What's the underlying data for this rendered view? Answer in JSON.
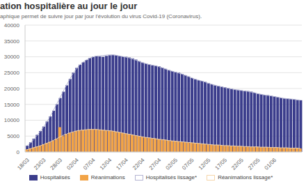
{
  "chart_data": {
    "type": "bar",
    "title": "ation hospitalière au jour le jour",
    "subtitle": "aphique permet de suivre jour par jour l'évolution du virus Covid-19 (Coronavirus).",
    "categories": [
      "18/03",
      null,
      null,
      null,
      null,
      "23/03",
      null,
      null,
      null,
      null,
      "28/03",
      null,
      null,
      null,
      null,
      "02/04",
      null,
      null,
      null,
      null,
      "07/04",
      null,
      null,
      null,
      null,
      "12/04",
      null,
      null,
      null,
      null,
      "17/04",
      null,
      null,
      null,
      null,
      "22/04",
      null,
      null,
      null,
      null,
      "27/04",
      null,
      null,
      null,
      null,
      "02/05",
      null,
      null,
      null,
      null,
      "07/05",
      null,
      null,
      null,
      null,
      "12/05",
      null,
      null,
      null,
      null,
      "17/05",
      null,
      null,
      null,
      null,
      "22/05",
      null,
      null,
      null,
      null,
      "27/05",
      null,
      null,
      null,
      null,
      "01/06",
      null,
      null,
      null,
      null,
      null,
      null,
      null,
      null
    ],
    "series": [
      {
        "name": "Hospitalisés",
        "type": "bar",
        "color": "#3b3d8c",
        "values": [
          2000,
          3000,
          4200,
          5400,
          6600,
          8000,
          9600,
          11200,
          13000,
          15000,
          17000,
          19000,
          21000,
          23000,
          25000,
          26500,
          27500,
          28300,
          29000,
          29600,
          30000,
          30200,
          30100,
          30000,
          30300,
          30500,
          30600,
          30500,
          30300,
          30100,
          30000,
          29800,
          29500,
          29100,
          28600,
          28200,
          27900,
          27600,
          27300,
          27200,
          27000,
          26600,
          26200,
          25800,
          25500,
          25200,
          25000,
          24600,
          24200,
          23800,
          23300,
          22900,
          22600,
          22400,
          22100,
          21700,
          21300,
          21000,
          20800,
          20600,
          20400,
          20100,
          19900,
          19700,
          19600,
          19400,
          19300,
          19200,
          19000,
          18700,
          18400,
          18200,
          18000,
          17900,
          17700,
          17500,
          17300,
          17100,
          16900,
          16800,
          16700,
          16600,
          16500,
          16300
        ]
      },
      {
        "name": "Réanimations",
        "type": "bar",
        "color": "#f2a447",
        "values": [
          800,
          1100,
          1400,
          1700,
          2000,
          2400,
          2800,
          3200,
          3600,
          4100,
          7800,
          5000,
          5600,
          6000,
          6300,
          6600,
          6800,
          6900,
          7000,
          7100,
          7100,
          7100,
          7000,
          6900,
          6800,
          6700,
          6600,
          6400,
          6200,
          6000,
          5800,
          5600,
          5400,
          5200,
          5000,
          4800,
          4600,
          4500,
          4300,
          4200,
          4000,
          3900,
          3800,
          3600,
          3500,
          3400,
          3300,
          3200,
          3100,
          3000,
          2900,
          2800,
          2700,
          2600,
          2500,
          2400,
          2300,
          2200,
          2200,
          2100,
          2000,
          2000,
          1900,
          1900,
          1800,
          1800,
          1700,
          1700,
          1600,
          1600,
          1600,
          1500,
          1500,
          1500,
          1400,
          1400,
          1400,
          1300,
          1300,
          1300,
          1200,
          1200,
          1200,
          1100
        ]
      },
      {
        "name": "Hospitalisés lissage*",
        "type": "line",
        "color": "#b4b5d3",
        "values": [
          1800,
          2700,
          3800,
          5000,
          6300,
          7700,
          9300,
          11000,
          12900,
          14900,
          16900,
          18900,
          20900,
          22800,
          24600,
          26100,
          27300,
          28200,
          28900,
          29500,
          29900,
          30200,
          30300,
          30400,
          30500,
          30600,
          30600,
          30500,
          30300,
          30100,
          29900,
          29700,
          29400,
          29000,
          28600,
          28200,
          27900,
          27600,
          27400,
          27200,
          26900,
          26600,
          26200,
          25800,
          25500,
          25200,
          24900,
          24600,
          24200,
          23800,
          23400,
          23000,
          22700,
          22400,
          22100,
          21700,
          21400,
          21100,
          20800,
          20600,
          20300,
          20100,
          19900,
          19700,
          19500,
          19400,
          19200,
          19100,
          18900,
          18700,
          18400,
          18200,
          18000,
          17800,
          17700,
          17500,
          17300,
          17100,
          16900,
          16800,
          16700,
          16600,
          16400,
          16300
        ]
      },
      {
        "name": "Réanimations lissage*",
        "type": "line",
        "color": "#f6d6aa",
        "values": [
          700,
          1000,
          1300,
          1600,
          1900,
          2300,
          2700,
          3100,
          3600,
          4100,
          4700,
          5200,
          5600,
          6000,
          6300,
          6600,
          6800,
          6900,
          7000,
          7100,
          7100,
          7100,
          7000,
          6900,
          6800,
          6700,
          6600,
          6400,
          6200,
          6000,
          5800,
          5600,
          5400,
          5200,
          5000,
          4800,
          4600,
          4500,
          4300,
          4200,
          4000,
          3900,
          3800,
          3600,
          3500,
          3400,
          3300,
          3200,
          3100,
          3000,
          2900,
          2800,
          2700,
          2600,
          2500,
          2400,
          2300,
          2200,
          2200,
          2100,
          2000,
          2000,
          1900,
          1900,
          1800,
          1800,
          1700,
          1700,
          1600,
          1600,
          1600,
          1500,
          1500,
          1500,
          1400,
          1400,
          1400,
          1300,
          1300,
          1300,
          1200,
          1200,
          1200,
          1100
        ]
      }
    ],
    "ylim": [
      0,
      40000
    ],
    "yticks": [
      0,
      5000,
      10000,
      15000,
      20000,
      25000,
      30000,
      35000,
      40000
    ],
    "grid": true,
    "legend": "bottom"
  }
}
